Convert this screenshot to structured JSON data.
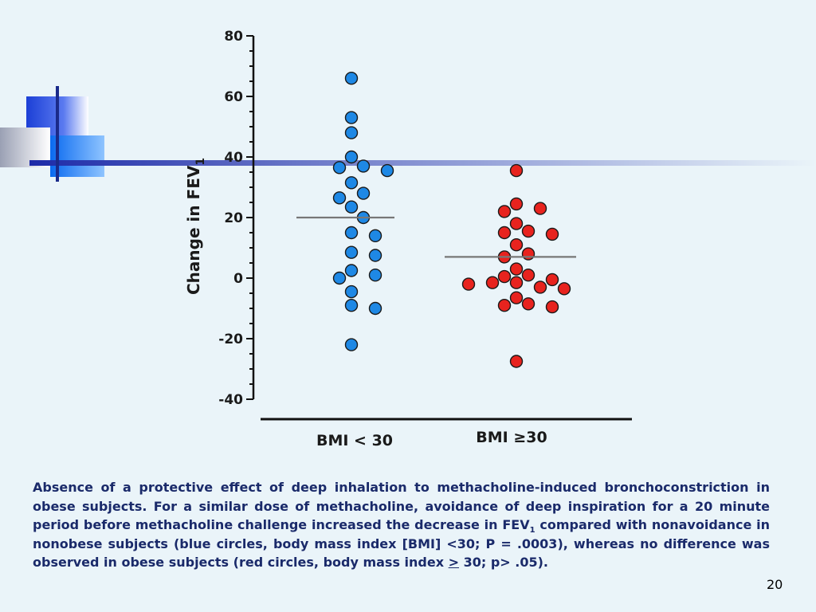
{
  "slide": {
    "number": "20",
    "caption": {
      "part1": "Absence of a protective effect of deep inhalation to methacholine-induced bronchoconstriction in obese subjects. For a similar dose of methacholine, avoidance of deep inspiration for a 20 minute period before methacholine challenge increased the decrease in FEV",
      "sub": "1",
      "part2": " compared with nonavoidance in nonobese subjects (blue circles, body mass index [BMI] <30; P = .0003), whereas no difference was observed in obese subjects (red circles, body mass index ",
      "underlined": ">",
      "part3": " 30; p> .05)."
    }
  },
  "chart_data": {
    "type": "scatter",
    "ylabel": "Change in FEV",
    "ylabel_sub": "1",
    "ylim": [
      -40,
      80
    ],
    "yticks": [
      "80",
      "60",
      "40",
      "20",
      "0",
      "-20",
      "-40"
    ],
    "categories": [
      "BMI < 30",
      "BMI ≥30"
    ],
    "grid": false,
    "series": [
      {
        "category": "BMI < 30",
        "color": "#1e88e5",
        "mean": 20,
        "values": [
          66,
          53,
          48,
          40,
          36.5,
          35.5,
          37,
          31.5,
          28,
          26.5,
          23.5,
          20,
          15,
          14,
          8.5,
          7.5,
          2.5,
          1,
          0,
          -4.5,
          -9,
          -10,
          -22
        ]
      },
      {
        "category": "BMI ≥30",
        "color": "#e8231e",
        "mean": 7,
        "values": [
          35.5,
          24.5,
          22,
          23,
          18,
          15,
          14.5,
          15.5,
          11,
          8,
          7,
          3,
          1,
          0.5,
          -0.5,
          -1.5,
          -1.5,
          -2,
          -3,
          -3.5,
          -6.5,
          -8.5,
          -9.5,
          -9,
          -27.5
        ]
      }
    ]
  }
}
